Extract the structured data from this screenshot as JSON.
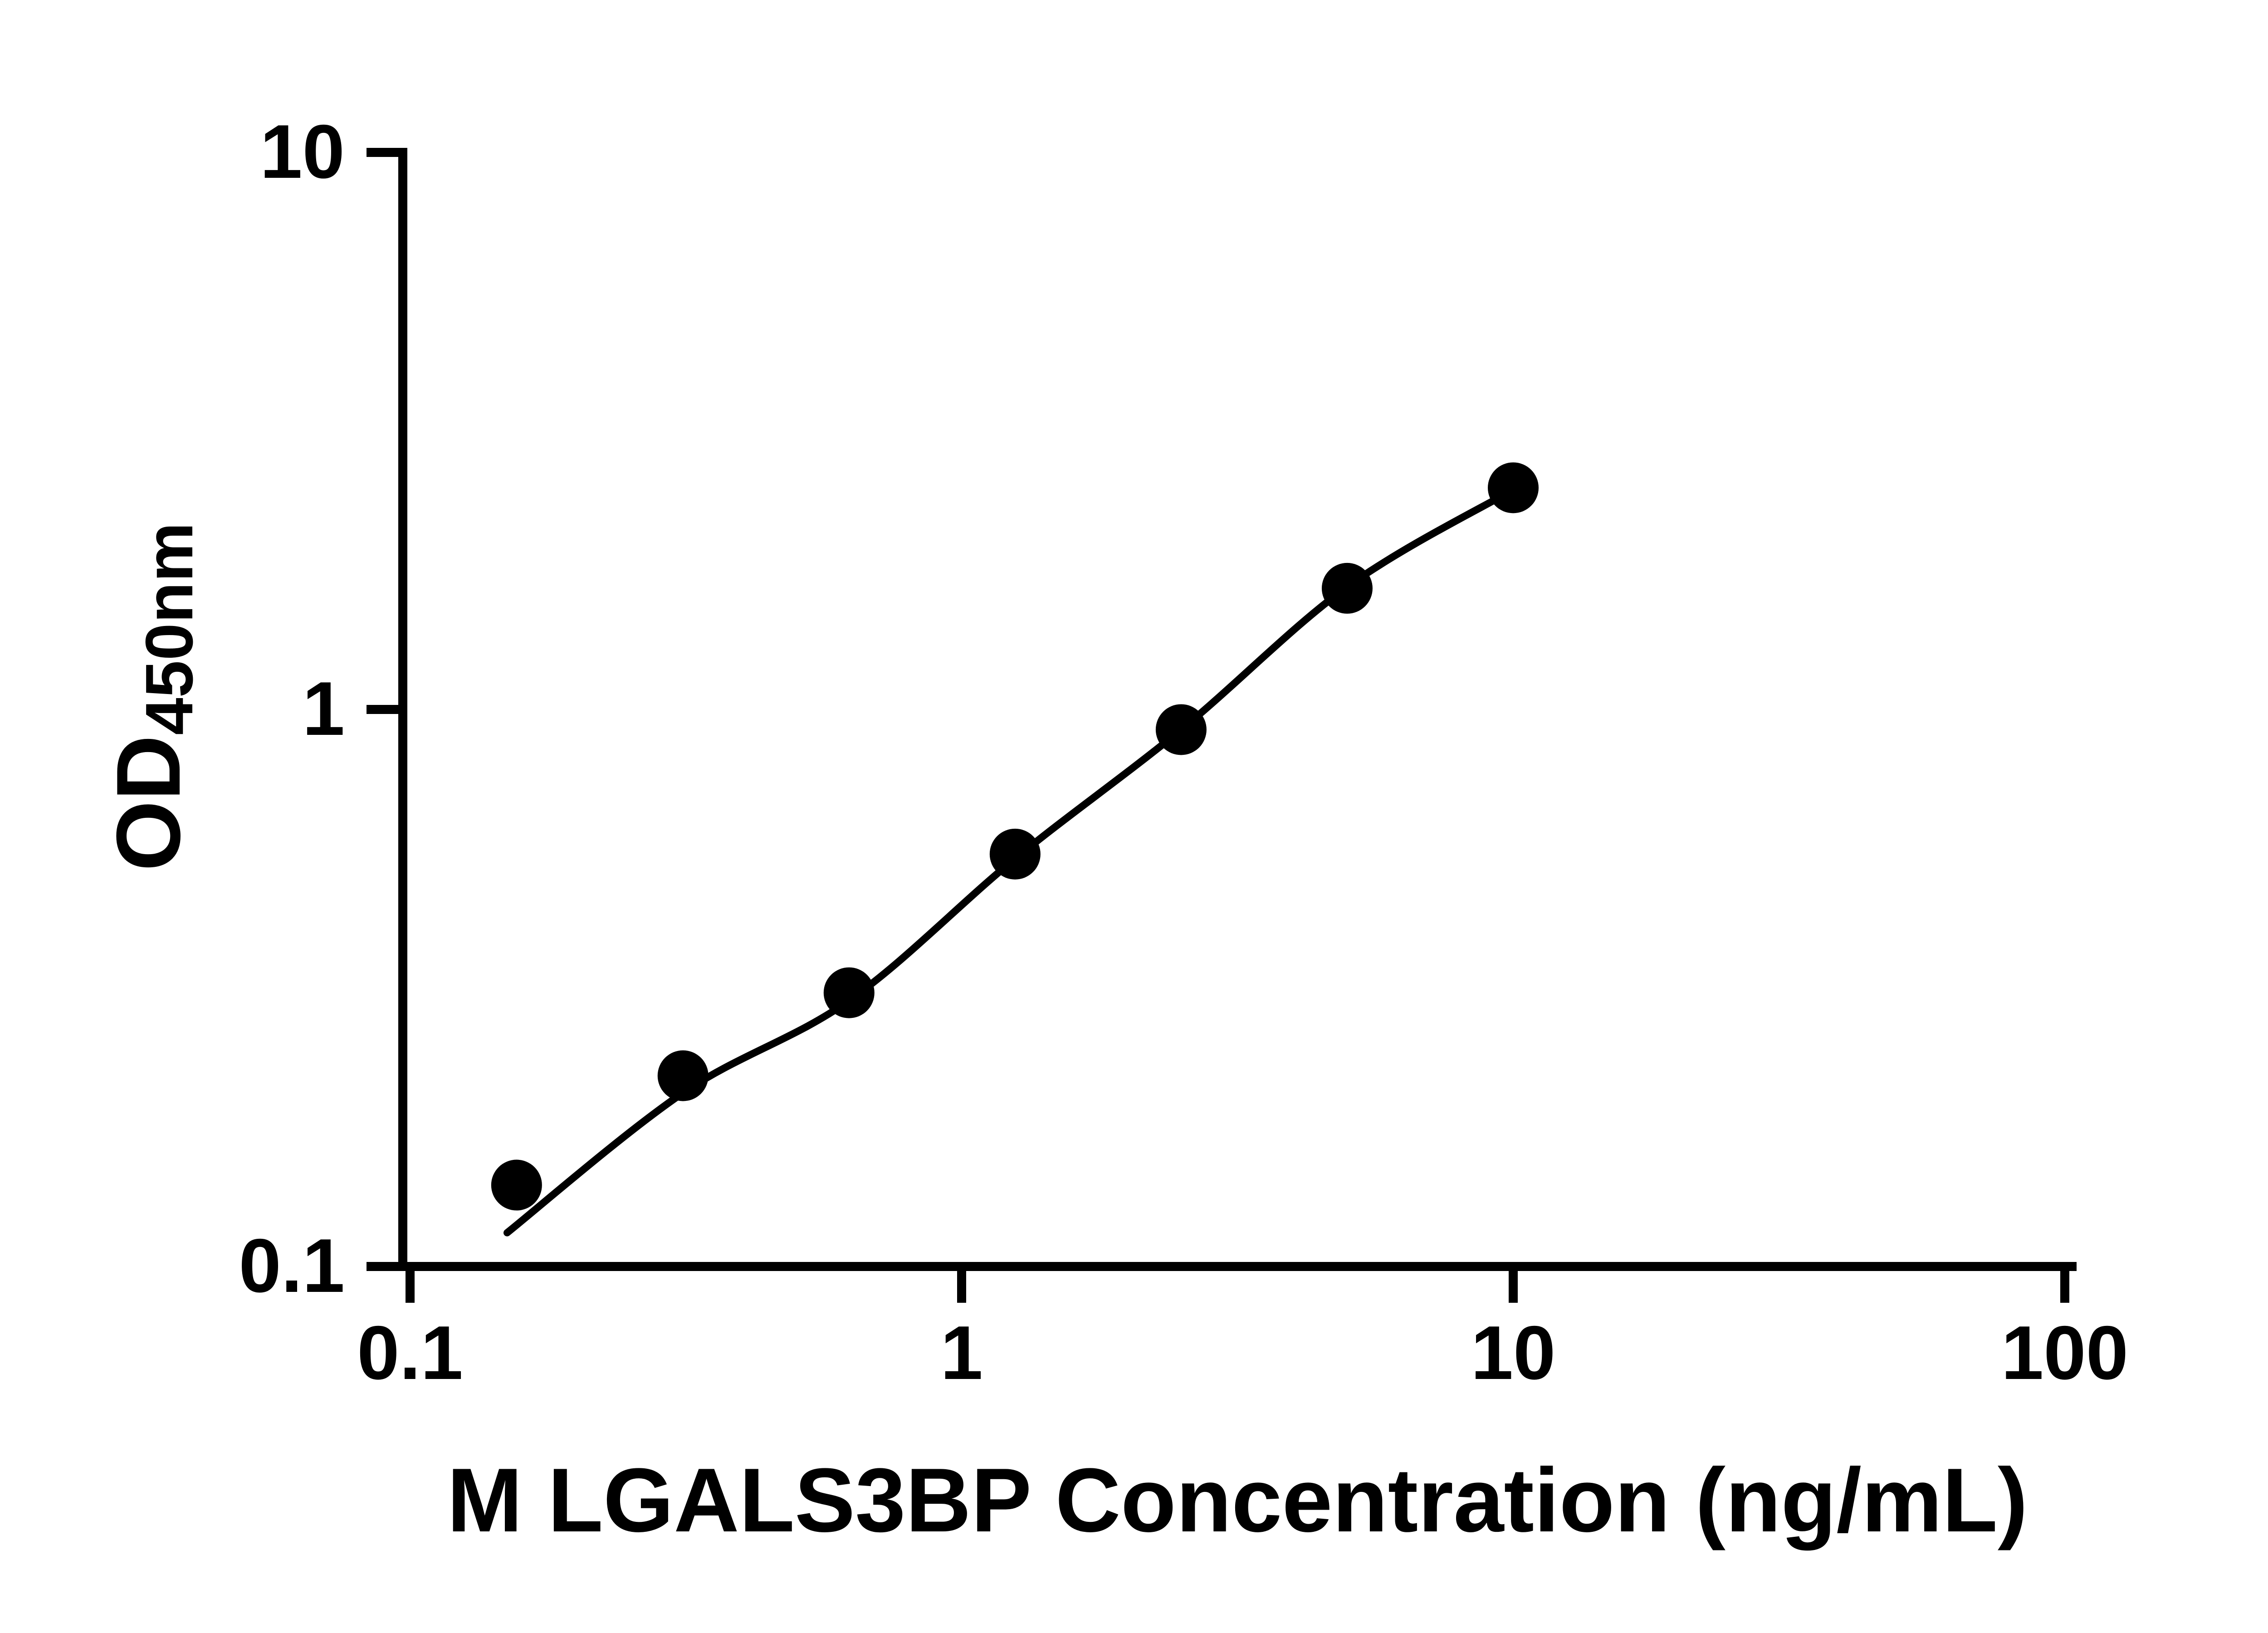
{
  "chart_data": {
    "type": "scatter",
    "title": "",
    "xlabel": "M LGALS3BP Concentration (ng/mL)",
    "ylabel": "OD",
    "ylabel_subscript": "450nm",
    "x_scale": "log",
    "y_scale": "log",
    "xlim": [
      0.1,
      100
    ],
    "ylim": [
      0.1,
      10
    ],
    "x_ticks": [
      0.1,
      1,
      10,
      100
    ],
    "x_tick_labels": [
      "0.1",
      "1",
      "10",
      "100"
    ],
    "y_ticks": [
      0.1,
      1,
      10
    ],
    "y_tick_labels": [
      "0.1",
      "1",
      "10"
    ],
    "grid": false,
    "legend": false,
    "marker_color": "#000000",
    "line_color": "#000000",
    "axis_color": "#000000",
    "background": "#ffffff",
    "points": {
      "x": [
        0.156,
        0.3125,
        0.625,
        1.25,
        2.5,
        5,
        10
      ],
      "y": [
        0.14,
        0.22,
        0.31,
        0.55,
        0.92,
        1.65,
        2.5
      ]
    },
    "fit_curve": {
      "x": [
        0.15,
        0.3125,
        0.625,
        1.25,
        2.5,
        5,
        10
      ],
      "y": [
        0.115,
        0.205,
        0.3,
        0.54,
        0.92,
        1.66,
        2.48
      ]
    }
  }
}
